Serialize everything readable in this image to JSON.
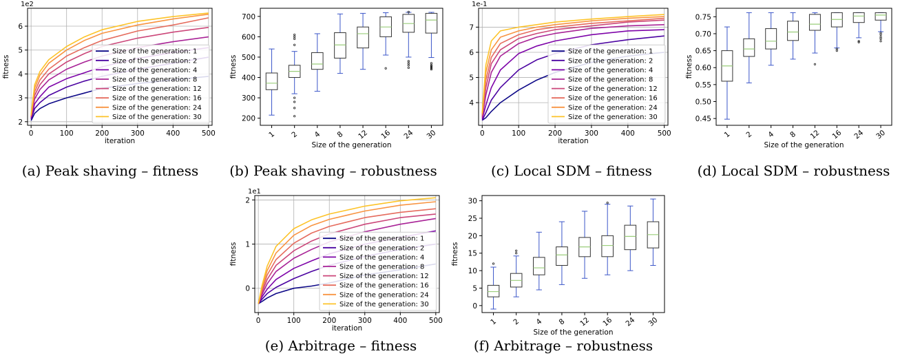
{
  "figure": {
    "panels": [
      {
        "id": "a",
        "caption": "(a) Peak shaving – fitness"
      },
      {
        "id": "b",
        "caption": "(b) Peak shaving – robustness"
      },
      {
        "id": "c",
        "caption": "(c) Local SDM – fitness"
      },
      {
        "id": "d",
        "caption": "(d) Local SDM – robustness"
      },
      {
        "id": "e",
        "caption": "(e) Arbitrage – fitness"
      },
      {
        "id": "f",
        "caption": "(f) Arbitrage – robustness"
      }
    ]
  },
  "colors": {
    "series": [
      "#0d0887",
      "#4b03a1",
      "#7d03a8",
      "#a82296",
      "#cb4679",
      "#e56b5d",
      "#f89441",
      "#fdc328"
    ],
    "box": "#3a55c8",
    "median": "#9acd7a",
    "grid": "#b0b0b0"
  },
  "chart_data": [
    {
      "id": "a",
      "type": "line",
      "title": "",
      "xlabel": "iteration",
      "ylabel": "fitness",
      "offset_text": "1e2",
      "grid": true,
      "legend_position": "lower-right",
      "xlim": [
        -10,
        510
      ],
      "ylim": [
        1.85,
        6.75
      ],
      "xticks": [
        0,
        100,
        200,
        300,
        400,
        500
      ],
      "yticks": [
        2,
        3,
        4,
        5,
        6
      ],
      "x": [
        0,
        10,
        25,
        50,
        100,
        150,
        200,
        300,
        400,
        500
      ],
      "series": [
        {
          "name": "Size of the generation: 1",
          "values": [
            2.05,
            2.35,
            2.55,
            2.75,
            3.0,
            3.2,
            3.4,
            3.6,
            3.75,
            3.9
          ]
        },
        {
          "name": "Size of the generation: 2",
          "values": [
            2.1,
            2.55,
            2.8,
            3.1,
            3.45,
            3.7,
            3.9,
            4.2,
            4.45,
            4.7
          ]
        },
        {
          "name": "Size of the generation: 4",
          "values": [
            2.15,
            2.75,
            3.05,
            3.45,
            3.8,
            4.05,
            4.3,
            4.65,
            4.9,
            5.1
          ]
        },
        {
          "name": "Size of the generation: 8",
          "values": [
            2.2,
            2.95,
            3.35,
            3.75,
            4.2,
            4.5,
            4.75,
            5.1,
            5.35,
            5.55
          ]
        },
        {
          "name": "Size of the generation: 12",
          "values": [
            2.2,
            3.1,
            3.55,
            4.0,
            4.5,
            4.85,
            5.15,
            5.5,
            5.75,
            5.95
          ]
        },
        {
          "name": "Size of the generation: 16",
          "values": [
            2.25,
            3.25,
            3.75,
            4.2,
            4.75,
            5.1,
            5.4,
            5.8,
            6.05,
            6.35
          ]
        },
        {
          "name": "Size of the generation: 24",
          "values": [
            2.25,
            3.4,
            3.95,
            4.45,
            5.0,
            5.4,
            5.7,
            6.05,
            6.3,
            6.5
          ]
        },
        {
          "name": "Size of the generation: 30",
          "values": [
            2.3,
            3.55,
            4.1,
            4.6,
            5.15,
            5.55,
            5.85,
            6.2,
            6.4,
            6.55
          ]
        }
      ]
    },
    {
      "id": "b",
      "type": "box",
      "title": "",
      "xlabel": "Size of the generation",
      "ylabel": "fitness",
      "grid": false,
      "ylim": [
        165,
        740
      ],
      "yticks": [
        200,
        300,
        400,
        500,
        600,
        700
      ],
      "categories": [
        "1",
        "2",
        "4",
        "8",
        "12",
        "16",
        "24",
        "30"
      ],
      "boxes": [
        {
          "whisker_low": 215,
          "q1": 340,
          "median": 372,
          "q3": 422,
          "whisker_high": 540,
          "outliers": []
        },
        {
          "whisker_low": 320,
          "q1": 400,
          "median": 430,
          "q3": 460,
          "whisker_high": 528,
          "outliers": [
            210,
            250,
            280,
            300,
            560,
            590,
            600,
            610
          ]
        },
        {
          "whisker_low": 332,
          "q1": 440,
          "median": 466,
          "q3": 522,
          "whisker_high": 615,
          "outliers": []
        },
        {
          "whisker_low": 420,
          "q1": 495,
          "median": 560,
          "q3": 620,
          "whisker_high": 712,
          "outliers": []
        },
        {
          "whisker_low": 440,
          "q1": 545,
          "median": 615,
          "q3": 648,
          "whisker_high": 715,
          "outliers": []
        },
        {
          "whisker_low": 510,
          "q1": 600,
          "median": 648,
          "q3": 698,
          "whisker_high": 718,
          "outliers": [
            445
          ]
        },
        {
          "whisker_low": 500,
          "q1": 622,
          "median": 665,
          "q3": 710,
          "whisker_high": 720,
          "outliers": [
            448,
            460,
            470,
            480,
            722
          ]
        },
        {
          "whisker_low": 498,
          "q1": 618,
          "median": 682,
          "q3": 715,
          "whisker_high": 720,
          "outliers": [
            440,
            445,
            450,
            455,
            460,
            470
          ]
        }
      ]
    },
    {
      "id": "c",
      "type": "line",
      "title": "",
      "xlabel": "iteration",
      "ylabel": "",
      "offset_text": "1e-1",
      "grid": true,
      "legend_position": "lower-right",
      "xlim": [
        -10,
        510
      ],
      "ylim": [
        3.1,
        7.75
      ],
      "xticks": [
        0,
        100,
        200,
        300,
        400,
        500
      ],
      "yticks": [
        4,
        5,
        6,
        7
      ],
      "x": [
        0,
        10,
        25,
        50,
        100,
        150,
        200,
        300,
        400,
        500
      ],
      "series": [
        {
          "name": "Size of the generation: 1",
          "values": [
            3.3,
            3.4,
            3.65,
            4.0,
            4.5,
            4.9,
            5.2,
            5.6,
            5.85,
            6.0
          ]
        },
        {
          "name": "Size of the generation: 2",
          "values": [
            3.3,
            3.6,
            4.1,
            4.6,
            5.3,
            5.7,
            5.95,
            6.3,
            6.5,
            6.65
          ]
        },
        {
          "name": "Size of the generation: 4",
          "values": [
            3.35,
            3.9,
            4.6,
            5.3,
            5.95,
            6.25,
            6.45,
            6.7,
            6.85,
            6.9
          ]
        },
        {
          "name": "Size of the generation: 8",
          "values": [
            3.4,
            4.3,
            5.2,
            5.85,
            6.35,
            6.6,
            6.75,
            6.95,
            7.05,
            7.1
          ]
        },
        {
          "name": "Size of the generation: 12",
          "values": [
            3.45,
            4.6,
            5.55,
            6.1,
            6.55,
            6.75,
            6.9,
            7.05,
            7.2,
            7.28
          ]
        },
        {
          "name": "Size of the generation: 16",
          "values": [
            3.5,
            4.9,
            5.8,
            6.35,
            6.7,
            6.9,
            7.0,
            7.15,
            7.25,
            7.35
          ]
        },
        {
          "name": "Size of the generation: 24",
          "values": [
            3.55,
            5.2,
            6.1,
            6.6,
            6.85,
            7.0,
            7.1,
            7.25,
            7.35,
            7.42
          ]
        },
        {
          "name": "Size of the generation: 30",
          "values": [
            3.6,
            5.5,
            6.45,
            6.85,
            7.0,
            7.1,
            7.2,
            7.32,
            7.42,
            7.5
          ]
        }
      ]
    },
    {
      "id": "d",
      "type": "box",
      "title": "",
      "xlabel": "Size of the generation",
      "ylabel": "fitness",
      "grid": false,
      "ylim": [
        0.43,
        0.775
      ],
      "yticks": [
        0.45,
        0.5,
        0.55,
        0.6,
        0.65,
        0.7,
        0.75
      ],
      "categories": [
        "1",
        "2",
        "4",
        "8",
        "12",
        "16",
        "24",
        "30"
      ],
      "boxes": [
        {
          "whisker_low": 0.448,
          "q1": 0.56,
          "median": 0.605,
          "q3": 0.65,
          "whisker_high": 0.72,
          "outliers": []
        },
        {
          "whisker_low": 0.555,
          "q1": 0.633,
          "median": 0.655,
          "q3": 0.685,
          "whisker_high": 0.762,
          "outliers": []
        },
        {
          "whisker_low": 0.607,
          "q1": 0.655,
          "median": 0.678,
          "q3": 0.715,
          "whisker_high": 0.762,
          "outliers": []
        },
        {
          "whisker_low": 0.625,
          "q1": 0.68,
          "median": 0.705,
          "q3": 0.737,
          "whisker_high": 0.762,
          "outliers": []
        },
        {
          "whisker_low": 0.643,
          "q1": 0.71,
          "median": 0.728,
          "q3": 0.757,
          "whisker_high": 0.762,
          "outliers": [
            0.61
          ]
        },
        {
          "whisker_low": 0.658,
          "q1": 0.72,
          "median": 0.742,
          "q3": 0.762,
          "whisker_high": 0.762,
          "outliers": [
            0.65,
            0.655
          ]
        },
        {
          "whisker_low": 0.688,
          "q1": 0.733,
          "median": 0.752,
          "q3": 0.762,
          "whisker_high": 0.762,
          "outliers": [
            0.675,
            0.678
          ]
        },
        {
          "whisker_low": 0.706,
          "q1": 0.74,
          "median": 0.755,
          "q3": 0.762,
          "whisker_high": 0.762,
          "outliers": [
            0.678,
            0.685,
            0.69,
            0.697,
            0.702
          ]
        }
      ]
    },
    {
      "id": "e",
      "type": "line",
      "title": "",
      "xlabel": "iteration",
      "ylabel": "fitness",
      "offset_text": "1e1",
      "grid": true,
      "legend_position": "lower-right",
      "xlim": [
        -10,
        510
      ],
      "ylim": [
        -0.55,
        2.1
      ],
      "xticks": [
        0,
        100,
        200,
        300,
        400,
        500
      ],
      "yticks": [
        0,
        1,
        2
      ],
      "x": [
        0,
        10,
        25,
        50,
        100,
        150,
        200,
        300,
        400,
        500
      ],
      "series": [
        {
          "name": "Size of the generation: 1",
          "values": [
            -0.35,
            -0.3,
            -0.22,
            -0.12,
            0.0,
            0.05,
            0.12,
            0.3,
            0.42,
            0.55
          ]
        },
        {
          "name": "Size of the generation: 2",
          "values": [
            -0.35,
            -0.25,
            -0.12,
            0.02,
            0.22,
            0.38,
            0.52,
            0.72,
            0.88,
            1.0
          ]
        },
        {
          "name": "Size of the generation: 4",
          "values": [
            -0.35,
            -0.2,
            -0.02,
            0.2,
            0.45,
            0.62,
            0.78,
            1.0,
            1.15,
            1.3
          ]
        },
        {
          "name": "Size of the generation: 8",
          "values": [
            -0.35,
            -0.15,
            0.1,
            0.38,
            0.68,
            0.88,
            1.05,
            1.28,
            1.45,
            1.58
          ]
        },
        {
          "name": "Size of the generation: 12",
          "values": [
            -0.35,
            -0.1,
            0.2,
            0.52,
            0.85,
            1.07,
            1.23,
            1.45,
            1.6,
            1.68
          ]
        },
        {
          "name": "Size of the generation: 16",
          "values": [
            -0.35,
            -0.05,
            0.3,
            0.65,
            1.02,
            1.25,
            1.4,
            1.6,
            1.72,
            1.8
          ]
        },
        {
          "name": "Size of the generation: 24",
          "values": [
            -0.35,
            0.0,
            0.4,
            0.8,
            1.2,
            1.42,
            1.56,
            1.75,
            1.88,
            1.96
          ]
        },
        {
          "name": "Size of the generation: 30",
          "values": [
            -0.35,
            0.05,
            0.5,
            0.95,
            1.35,
            1.55,
            1.68,
            1.86,
            1.98,
            2.05
          ]
        }
      ]
    },
    {
      "id": "f",
      "type": "box",
      "title": "",
      "xlabel": "Size of the generation",
      "ylabel": "fitness",
      "grid": false,
      "ylim": [
        -2,
        31.5
      ],
      "yticks": [
        0,
        5,
        10,
        15,
        20,
        25,
        30
      ],
      "categories": [
        "1",
        "2",
        "4",
        "8",
        "12",
        "16",
        "24",
        "30"
      ],
      "boxes": [
        {
          "whisker_low": -1.0,
          "q1": 2.5,
          "median": 4.0,
          "q3": 5.8,
          "whisker_high": 11.0,
          "outliers": [
            12.0
          ]
        },
        {
          "whisker_low": 2.5,
          "q1": 5.3,
          "median": 7.2,
          "q3": 9.2,
          "whisker_high": 14.2,
          "outliers": [
            15.0,
            15.7
          ]
        },
        {
          "whisker_low": 4.5,
          "q1": 8.8,
          "median": 10.8,
          "q3": 13.8,
          "whisker_high": 21.0,
          "outliers": []
        },
        {
          "whisker_low": 6.0,
          "q1": 11.5,
          "median": 14.5,
          "q3": 16.8,
          "whisker_high": 24.0,
          "outliers": []
        },
        {
          "whisker_low": 7.8,
          "q1": 14.0,
          "median": 16.8,
          "q3": 19.5,
          "whisker_high": 27.0,
          "outliers": []
        },
        {
          "whisker_low": 8.8,
          "q1": 14.0,
          "median": 17.2,
          "q3": 20.0,
          "whisker_high": 29.0,
          "outliers": [
            29.4
          ]
        },
        {
          "whisker_low": 10.0,
          "q1": 16.0,
          "median": 19.8,
          "q3": 23.0,
          "whisker_high": 28.5,
          "outliers": []
        },
        {
          "whisker_low": 11.5,
          "q1": 16.5,
          "median": 20.3,
          "q3": 24.0,
          "whisker_high": 30.5,
          "outliers": []
        }
      ]
    }
  ]
}
